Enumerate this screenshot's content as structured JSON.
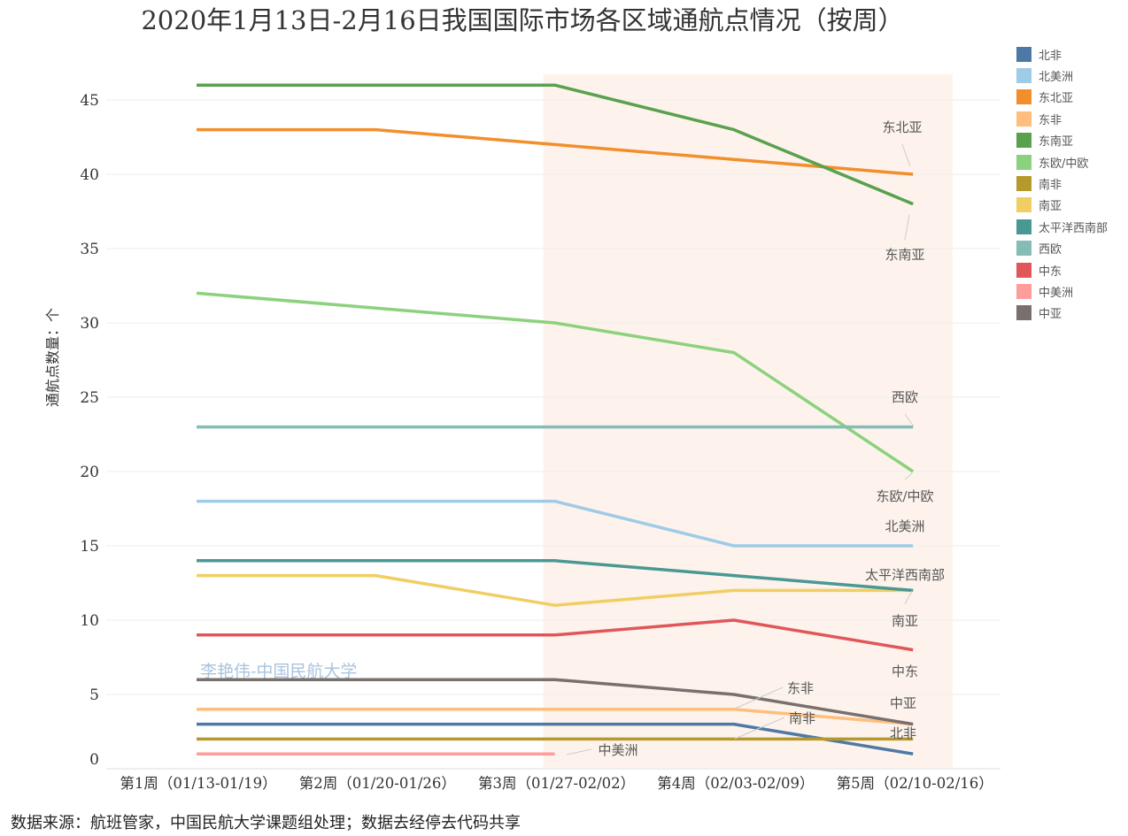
{
  "chart_data": {
    "type": "line",
    "title": "2020年1月13日-2月16日我国国际市场各区域通航点情况（按周）",
    "xlabel": "",
    "ylabel": "通航点数量：个",
    "categories": [
      "第1周（01/13-01/19）",
      "第2周（01/20-01/26）",
      "第3周（01/27-02/02）",
      "第4周（02/03-02/09）",
      "第5周（02/10-02/16）"
    ],
    "ylim": [
      0,
      48
    ],
    "yticks": [
      0,
      5,
      10,
      15,
      20,
      25,
      30,
      35,
      40,
      45
    ],
    "grid": true,
    "legend_position": "right",
    "highlight_range": [
      "第3周（01/27-02/02）",
      "第5周（02/10-02/16）"
    ],
    "highlight_color": "#fdf3ec",
    "watermark": "李艳伟-中国民航大学",
    "series": [
      {
        "name": "北非",
        "color": "#4e79a7",
        "values": [
          3,
          3,
          3,
          3,
          1
        ]
      },
      {
        "name": "北美洲",
        "color": "#a0cbe8",
        "values": [
          18,
          18,
          18,
          15,
          15
        ]
      },
      {
        "name": "东北亚",
        "color": "#f28e2b",
        "values": [
          43,
          43,
          42,
          41,
          40
        ]
      },
      {
        "name": "东非",
        "color": "#ffbe7d",
        "values": [
          4,
          4,
          4,
          4,
          3
        ]
      },
      {
        "name": "东南亚",
        "color": "#59a14f",
        "values": [
          46,
          46,
          46,
          43,
          38
        ]
      },
      {
        "name": "东欧/中欧",
        "color": "#8cd17d",
        "values": [
          32,
          31,
          30,
          28,
          20
        ]
      },
      {
        "name": "南非",
        "color": "#b6992d",
        "values": [
          2,
          2,
          2,
          2,
          2
        ]
      },
      {
        "name": "南亚",
        "color": "#f1ce63",
        "values": [
          13,
          13,
          11,
          12,
          12
        ]
      },
      {
        "name": "太平洋西南部",
        "color": "#499894",
        "values": [
          14,
          14,
          14,
          13,
          12
        ]
      },
      {
        "name": "西欧",
        "color": "#86bcb6",
        "values": [
          23,
          23,
          23,
          23,
          23
        ]
      },
      {
        "name": "中东",
        "color": "#e15759",
        "values": [
          9,
          9,
          9,
          10,
          8
        ]
      },
      {
        "name": "中美洲",
        "color": "#ff9d9a",
        "values": [
          1,
          1,
          1,
          null,
          null
        ]
      },
      {
        "name": "中亚",
        "color": "#79706e",
        "values": [
          6,
          6,
          6,
          5,
          3
        ]
      }
    ]
  },
  "source": "数据来源：航班管家，中国民航大学课题组处理；数据去经停去代码共享"
}
